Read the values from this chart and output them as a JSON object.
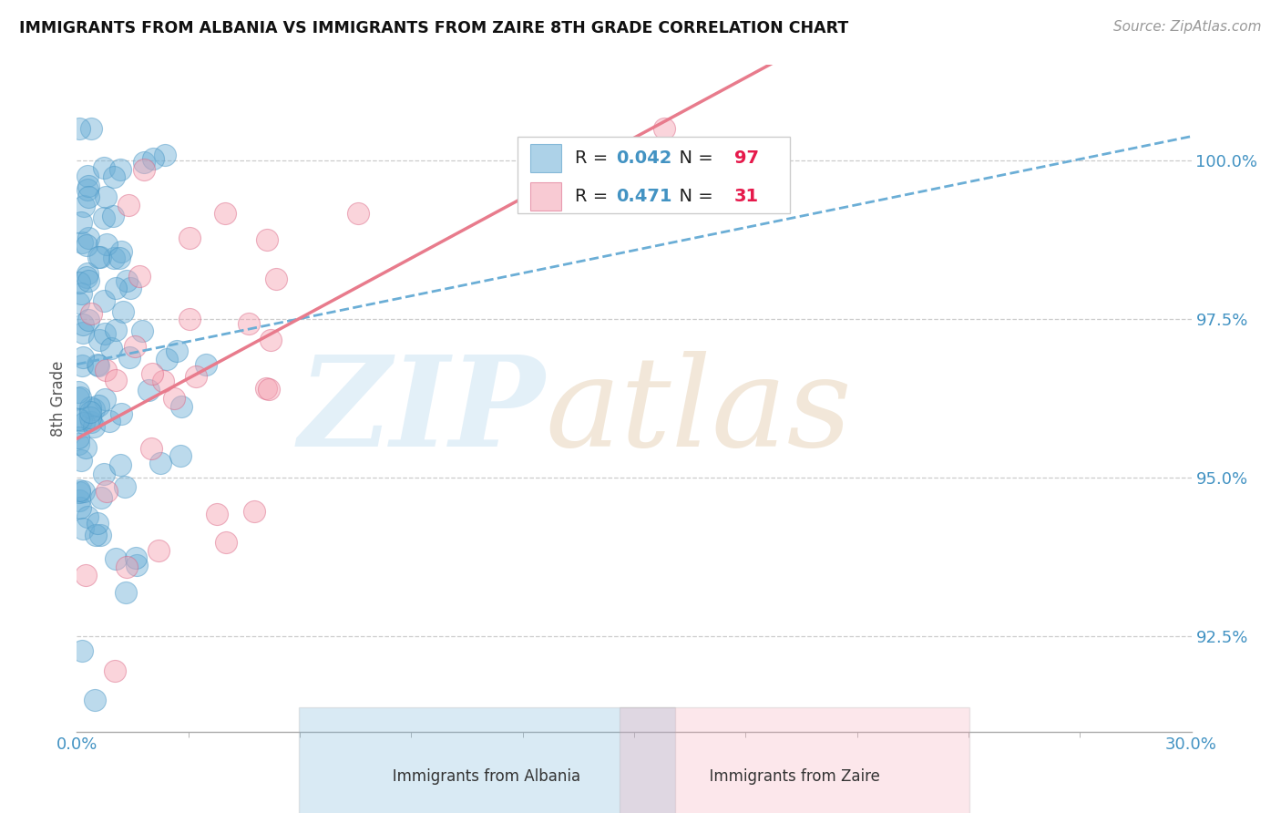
{
  "title": "IMMIGRANTS FROM ALBANIA VS IMMIGRANTS FROM ZAIRE 8TH GRADE CORRELATION CHART",
  "source": "Source: ZipAtlas.com",
  "ylabel": "8th Grade",
  "y_ticks": [
    92.5,
    95.0,
    97.5,
    100.0
  ],
  "y_tick_labels": [
    "92.5%",
    "95.0%",
    "97.5%",
    "100.0%"
  ],
  "x_lim": [
    0,
    30
  ],
  "y_lim": [
    91.0,
    101.5
  ],
  "albania_color": "#6baed6",
  "albania_edge": "#4393c3",
  "zaire_color": "#f4a0b0",
  "zaire_edge": "#d96080",
  "albania_R": 0.042,
  "albania_N": 97,
  "zaire_R": 0.471,
  "zaire_N": 31,
  "trend_albania_color": "#6baed6",
  "trend_zaire_color": "#e87b8c",
  "R_color": "#4393c3",
  "N_color": "#e6194b",
  "background_color": "#ffffff",
  "albania_seed": 42,
  "zaire_seed": 123
}
